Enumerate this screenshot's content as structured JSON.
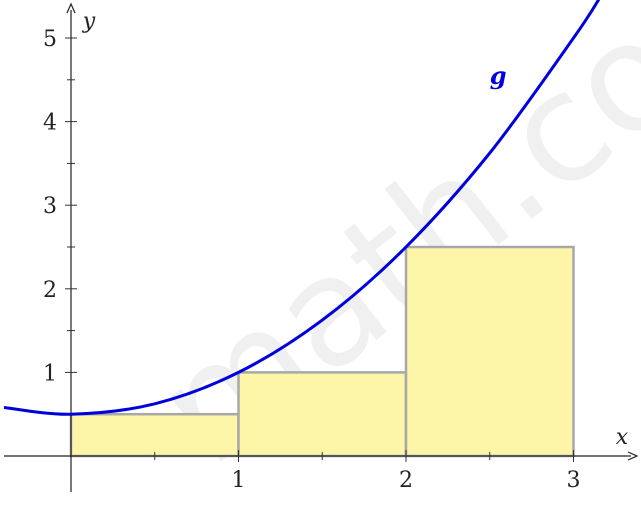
{
  "chart_data": {
    "type": "area",
    "title": "",
    "xlabel": "x",
    "ylabel": "y",
    "xlim": [
      -0.4,
      3.4
    ],
    "ylim": [
      0,
      5.4
    ],
    "grid": false,
    "x_ticks": [
      1,
      2,
      3
    ],
    "x_tick_labels": [
      "1",
      "2",
      "3"
    ],
    "y_ticks": [
      1,
      2,
      3,
      4,
      5
    ],
    "y_tick_labels": [
      "1",
      "2",
      "3",
      "4",
      "5"
    ],
    "series": [
      {
        "name": "g",
        "kind": "line",
        "x": [
          -0.4,
          0,
          0.5,
          1,
          1.5,
          2,
          2.5,
          3,
          3.16
        ],
        "y": [
          0.58,
          0.5,
          0.625,
          1,
          1.625,
          2.5,
          3.625,
          5,
          5.49
        ],
        "color": "#0000dd"
      },
      {
        "kind": "rectangles",
        "x_left": [
          0,
          1,
          2
        ],
        "x_right": [
          1,
          2,
          3
        ],
        "heights": [
          0.5,
          1,
          2.5
        ],
        "fill": "#fdf6a8",
        "stroke": "#a8a8a8"
      }
    ],
    "annotations": [
      {
        "text": "g",
        "x": 2.55,
        "y": 4.45,
        "color": "#0000dd"
      }
    ],
    "watermark": "math.co"
  }
}
